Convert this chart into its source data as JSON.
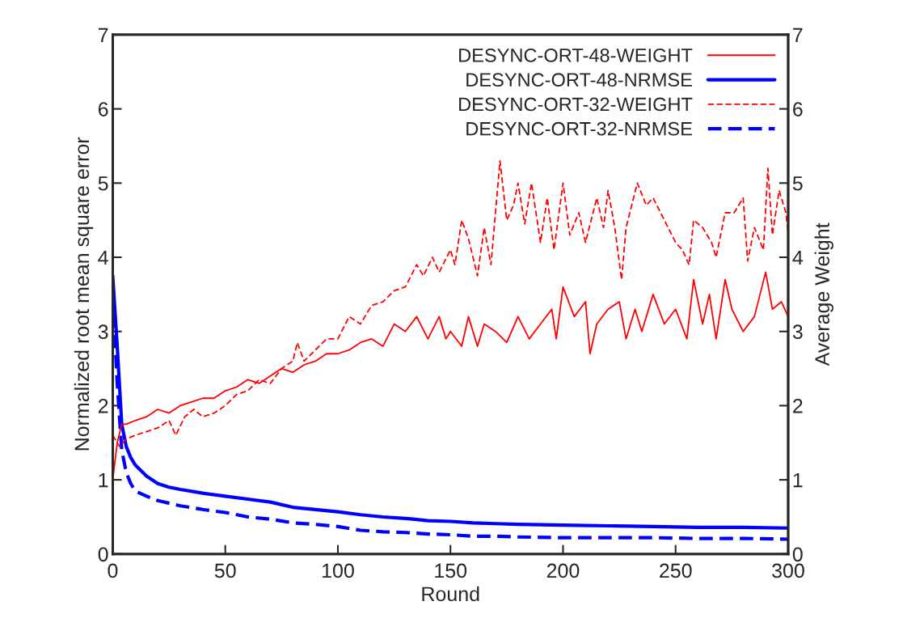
{
  "chart_data": {
    "type": "line",
    "xlabel": "Round",
    "ylabel": "Normalized root mean square error",
    "y2label": "Average Weight",
    "xlim": [
      0,
      300
    ],
    "xticks": [
      0,
      50,
      100,
      150,
      200,
      250,
      300
    ],
    "ylim": [
      0,
      7
    ],
    "yticks": [
      0,
      1,
      2,
      3,
      4,
      5,
      6,
      7
    ],
    "y2lim": [
      0,
      7
    ],
    "y2ticks": [
      0,
      1,
      2,
      3,
      4,
      5,
      6,
      7
    ],
    "legend": "top right",
    "grid": false,
    "series": [
      {
        "name": "DESYNC-ORT-48-WEIGHT",
        "color": "#ff0000",
        "axis": "y2",
        "line_style": "solid",
        "x": [
          0,
          2,
          4,
          6,
          10,
          15,
          20,
          25,
          30,
          35,
          40,
          45,
          50,
          55,
          60,
          65,
          70,
          75,
          80,
          85,
          90,
          95,
          100,
          105,
          110,
          115,
          120,
          125,
          130,
          135,
          140,
          145,
          148,
          150,
          155,
          158,
          162,
          165,
          170,
          175,
          180,
          185,
          190,
          195,
          197,
          200,
          205,
          210,
          212,
          215,
          220,
          225,
          228,
          232,
          235,
          240,
          245,
          250,
          255,
          258,
          262,
          265,
          268,
          272,
          275,
          280,
          285,
          290,
          293,
          297,
          300
        ],
        "values": [
          1.0,
          1.5,
          1.75,
          1.75,
          1.8,
          1.85,
          1.95,
          1.9,
          2.0,
          2.05,
          2.1,
          2.1,
          2.2,
          2.25,
          2.35,
          2.3,
          2.4,
          2.5,
          2.45,
          2.55,
          2.6,
          2.7,
          2.7,
          2.75,
          2.85,
          2.9,
          2.8,
          3.1,
          3.0,
          3.2,
          2.9,
          3.2,
          2.9,
          3.0,
          2.8,
          3.2,
          2.8,
          3.1,
          3.0,
          2.85,
          3.2,
          2.9,
          3.1,
          3.3,
          2.9,
          3.6,
          3.2,
          3.4,
          2.7,
          3.1,
          3.3,
          3.4,
          2.9,
          3.3,
          3.0,
          3.5,
          3.1,
          3.3,
          2.9,
          3.7,
          3.1,
          3.5,
          2.9,
          3.7,
          3.3,
          3.0,
          3.2,
          3.8,
          3.3,
          3.4,
          3.2
        ]
      },
      {
        "name": "DESYNC-ORT-48-NRMSE",
        "color": "#0000ff",
        "axis": "y",
        "line_style": "solid",
        "x": [
          0,
          2,
          4,
          6,
          8,
          10,
          15,
          20,
          25,
          30,
          40,
          50,
          60,
          70,
          80,
          90,
          100,
          110,
          120,
          130,
          140,
          150,
          160,
          170,
          180,
          200,
          220,
          240,
          260,
          280,
          300
        ],
        "values": [
          3.75,
          2.8,
          1.75,
          1.45,
          1.3,
          1.2,
          1.05,
          0.95,
          0.9,
          0.87,
          0.82,
          0.78,
          0.74,
          0.7,
          0.63,
          0.6,
          0.57,
          0.53,
          0.5,
          0.48,
          0.45,
          0.44,
          0.42,
          0.41,
          0.4,
          0.39,
          0.38,
          0.37,
          0.36,
          0.36,
          0.35
        ]
      },
      {
        "name": "DESYNC-ORT-32-WEIGHT",
        "color": "#ff0000",
        "axis": "y2",
        "line_style": "dashed",
        "x": [
          0,
          3,
          6,
          10,
          15,
          20,
          25,
          28,
          32,
          36,
          40,
          45,
          50,
          55,
          60,
          65,
          70,
          75,
          80,
          82,
          85,
          90,
          95,
          100,
          105,
          110,
          115,
          120,
          125,
          130,
          135,
          138,
          142,
          145,
          150,
          152,
          155,
          158,
          160,
          162,
          165,
          168,
          170,
          172,
          175,
          178,
          180,
          183,
          186,
          190,
          193,
          196,
          200,
          203,
          207,
          210,
          215,
          218,
          220,
          223,
          226,
          228,
          233,
          237,
          240,
          245,
          250,
          253,
          256,
          258,
          262,
          266,
          268,
          272,
          276,
          280,
          282,
          285,
          289,
          291,
          293,
          296,
          299,
          300
        ],
        "values": [
          1.6,
          1.45,
          1.55,
          1.6,
          1.65,
          1.7,
          1.8,
          1.6,
          1.85,
          1.95,
          1.85,
          1.9,
          2.0,
          2.15,
          2.2,
          2.35,
          2.3,
          2.5,
          2.6,
          2.85,
          2.6,
          2.75,
          2.9,
          2.9,
          3.2,
          3.1,
          3.35,
          3.4,
          3.55,
          3.6,
          3.9,
          3.75,
          4.0,
          3.8,
          4.1,
          3.9,
          4.5,
          4.25,
          4.0,
          3.75,
          4.4,
          3.9,
          4.6,
          5.3,
          4.5,
          4.7,
          5.0,
          4.45,
          5.0,
          4.2,
          4.8,
          4.1,
          5.0,
          4.3,
          4.6,
          4.2,
          4.8,
          4.4,
          4.9,
          4.4,
          3.7,
          4.4,
          5.0,
          4.7,
          4.8,
          4.5,
          4.2,
          4.1,
          3.9,
          4.5,
          4.4,
          4.2,
          4.0,
          4.6,
          4.6,
          4.8,
          3.95,
          4.4,
          4.1,
          5.2,
          4.3,
          4.9,
          4.6,
          4.3
        ]
      },
      {
        "name": "DESYNC-ORT-32-NRMSE",
        "color": "#0000ff",
        "axis": "y",
        "line_style": "dashed",
        "x": [
          0,
          2,
          4,
          6,
          8,
          10,
          15,
          20,
          30,
          40,
          50,
          60,
          70,
          80,
          90,
          100,
          110,
          120,
          130,
          140,
          150,
          160,
          170,
          180,
          200,
          220,
          240,
          260,
          280,
          300
        ],
        "values": [
          3.5,
          2.3,
          1.4,
          1.1,
          0.95,
          0.85,
          0.78,
          0.72,
          0.65,
          0.6,
          0.56,
          0.5,
          0.47,
          0.42,
          0.4,
          0.37,
          0.32,
          0.3,
          0.29,
          0.27,
          0.26,
          0.24,
          0.24,
          0.23,
          0.22,
          0.22,
          0.22,
          0.21,
          0.21,
          0.2
        ]
      }
    ]
  }
}
